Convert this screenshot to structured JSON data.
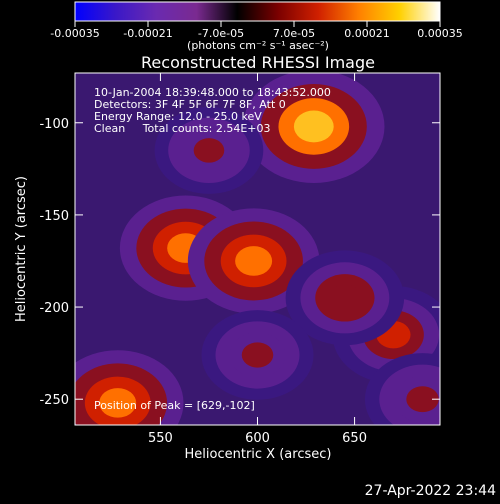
{
  "colorbar": {
    "tick_labels": [
      "-0.00035",
      "-0.00021",
      "-7.0e-05",
      "7.0e-05",
      "0.00021",
      "0.00035"
    ],
    "unit_label": "(photons cm⁻² s⁻¹ asec⁻²)",
    "colors": [
      "#0000ff",
      "#3a18c8",
      "#6a2ab0",
      "#7a2a90",
      "#000000",
      "#7a0000",
      "#d02000",
      "#ff8000",
      "#ffd000",
      "#ffffff"
    ]
  },
  "chart_data": {
    "type": "heatmap",
    "title": "Reconstructed RHESSI Image",
    "xlabel": "Heliocentric X (arcsec)",
    "ylabel": "Heliocentric Y (arcsec)",
    "xlim": [
      506,
      694
    ],
    "ylim": [
      -264,
      -73
    ],
    "x_ticks": [
      550,
      600,
      650
    ],
    "y_ticks": [
      -100,
      -150,
      -200,
      -250
    ],
    "colorscale_range": [
      -0.00035,
      0.00035
    ],
    "peak": [
      629,
      -102
    ],
    "bright_regions": [
      {
        "x": 629,
        "y": -102,
        "level": 1.0
      },
      {
        "x": 563,
        "y": -168,
        "level": 0.85
      },
      {
        "x": 598,
        "y": -175,
        "level": 0.85
      },
      {
        "x": 528,
        "y": -252,
        "level": 0.85
      },
      {
        "x": 670,
        "y": -215,
        "level": 0.7
      },
      {
        "x": 645,
        "y": -195,
        "level": 0.65
      },
      {
        "x": 600,
        "y": -226,
        "level": 0.55
      },
      {
        "x": 575,
        "y": -115,
        "level": 0.5
      },
      {
        "x": 685,
        "y": -250,
        "level": 0.6
      }
    ],
    "annotations": [
      "10-Jan-2004 18:39:48.000 to 18:43:52.000",
      "Detectors: 3F 4F 5F 6F 7F 8F, Att 0",
      "Energy Range: 12.0 - 25.0 keV",
      "Clean     Total counts: 2.54E+03"
    ],
    "peak_label": "Position of Peak = [629,-102]"
  },
  "footer": {
    "date": "27-Apr-2022 23:44"
  }
}
